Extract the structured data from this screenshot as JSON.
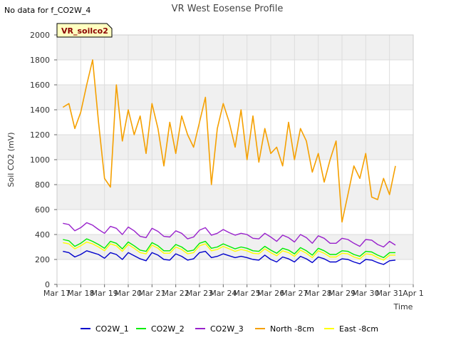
{
  "page": {
    "status_note": "No data for f_CO2W_4",
    "badge_label": "VR_soilco2",
    "badge_bg": "#ffffc0",
    "badge_text_color": "#8b0000"
  },
  "chart_data": {
    "type": "line",
    "title": "VR West Eosense Profile",
    "xlabel": "Time",
    "ylabel": "Soil CO2 (mV)",
    "ylim": [
      0,
      2000
    ],
    "yticks": [
      0,
      200,
      400,
      600,
      800,
      1000,
      1200,
      1400,
      1600,
      1800,
      2000
    ],
    "xlim": [
      0,
      15
    ],
    "xticks": [
      {
        "x": 0,
        "label": "Mar 17"
      },
      {
        "x": 1,
        "label": "Mar 18"
      },
      {
        "x": 2,
        "label": "Mar 19"
      },
      {
        "x": 3,
        "label": "Mar 20"
      },
      {
        "x": 4,
        "label": "Mar 21"
      },
      {
        "x": 5,
        "label": "Mar 22"
      },
      {
        "x": 6,
        "label": "Mar 23"
      },
      {
        "x": 7,
        "label": "Mar 24"
      },
      {
        "x": 8,
        "label": "Mar 25"
      },
      {
        "x": 9,
        "label": "Mar 26"
      },
      {
        "x": 10,
        "label": "Mar 27"
      },
      {
        "x": 11,
        "label": "Mar 28"
      },
      {
        "x": 12,
        "label": "Mar 29"
      },
      {
        "x": 13,
        "label": "Mar 30"
      },
      {
        "x": 14,
        "label": "Mar 31"
      },
      {
        "x": 15,
        "label": "Apr 1"
      }
    ],
    "band_color": "#f0f0f0",
    "grid": true,
    "legend_position": "bottom",
    "x": [
      0.25,
      0.5,
      0.75,
      1.0,
      1.25,
      1.5,
      1.75,
      2.0,
      2.25,
      2.5,
      2.75,
      3.0,
      3.25,
      3.5,
      3.75,
      4.0,
      4.25,
      4.5,
      4.75,
      5.0,
      5.25,
      5.5,
      5.75,
      6.0,
      6.25,
      6.5,
      6.75,
      7.0,
      7.25,
      7.5,
      7.75,
      8.0,
      8.25,
      8.5,
      8.75,
      9.0,
      9.25,
      9.5,
      9.75,
      10.0,
      10.25,
      10.5,
      10.75,
      11.0,
      11.25,
      11.5,
      11.75,
      12.0,
      12.25,
      12.5,
      12.75,
      13.0,
      13.25,
      13.5,
      13.75,
      14.0,
      14.25
    ],
    "series": [
      {
        "name": "CO2W_1",
        "color": "#0000cc",
        "values": [
          265,
          255,
          220,
          240,
          270,
          255,
          240,
          210,
          255,
          240,
          200,
          255,
          230,
          205,
          190,
          255,
          235,
          200,
          195,
          245,
          225,
          195,
          205,
          255,
          265,
          215,
          225,
          245,
          230,
          215,
          225,
          215,
          200,
          195,
          235,
          200,
          180,
          220,
          205,
          180,
          225,
          205,
          175,
          220,
          205,
          180,
          180,
          205,
          200,
          180,
          165,
          200,
          195,
          175,
          160,
          190,
          195
        ]
      },
      {
        "name": "CO2W_2",
        "color": "#00ee00",
        "values": [
          360,
          350,
          305,
          330,
          365,
          345,
          320,
          290,
          345,
          330,
          285,
          340,
          310,
          275,
          265,
          335,
          310,
          270,
          270,
          320,
          300,
          265,
          275,
          330,
          345,
          290,
          300,
          325,
          305,
          285,
          300,
          290,
          270,
          265,
          305,
          275,
          250,
          290,
          275,
          245,
          295,
          270,
          235,
          290,
          270,
          240,
          240,
          270,
          265,
          240,
          225,
          265,
          260,
          235,
          215,
          255,
          255
        ]
      },
      {
        "name": "CO2W_3",
        "color": "#9922cc",
        "values": [
          490,
          480,
          430,
          455,
          495,
          475,
          440,
          410,
          465,
          450,
          400,
          460,
          430,
          385,
          375,
          450,
          425,
          385,
          380,
          430,
          410,
          365,
          380,
          435,
          455,
          395,
          410,
          440,
          415,
          395,
          410,
          400,
          370,
          365,
          410,
          380,
          345,
          395,
          375,
          340,
          400,
          375,
          330,
          390,
          370,
          330,
          330,
          370,
          360,
          330,
          305,
          360,
          355,
          320,
          300,
          345,
          315
        ]
      },
      {
        "name": "North -8cm",
        "color": "#f5a000",
        "values": [
          1420,
          1450,
          1250,
          1380,
          1600,
          1800,
          1300,
          850,
          780,
          1600,
          1150,
          1400,
          1200,
          1350,
          1050,
          1450,
          1250,
          950,
          1300,
          1050,
          1350,
          1200,
          1100,
          1300,
          1500,
          800,
          1250,
          1450,
          1300,
          1100,
          1400,
          1000,
          1350,
          980,
          1250,
          1050,
          1100,
          950,
          1300,
          1000,
          1250,
          1150,
          900,
          1050,
          820,
          1000,
          1150,
          500,
          720,
          950,
          850,
          1050,
          700,
          680,
          850,
          720,
          950
        ]
      },
      {
        "name": "East -8cm",
        "color": "#ffff00",
        "values": [
          335,
          325,
          285,
          310,
          340,
          325,
          300,
          270,
          325,
          310,
          265,
          320,
          290,
          255,
          245,
          315,
          290,
          250,
          250,
          300,
          280,
          245,
          255,
          310,
          325,
          270,
          280,
          305,
          285,
          265,
          280,
          270,
          250,
          245,
          285,
          255,
          230,
          270,
          255,
          225,
          275,
          250,
          215,
          270,
          250,
          220,
          220,
          250,
          245,
          220,
          205,
          245,
          240,
          215,
          195,
          235,
          235
        ]
      }
    ]
  }
}
